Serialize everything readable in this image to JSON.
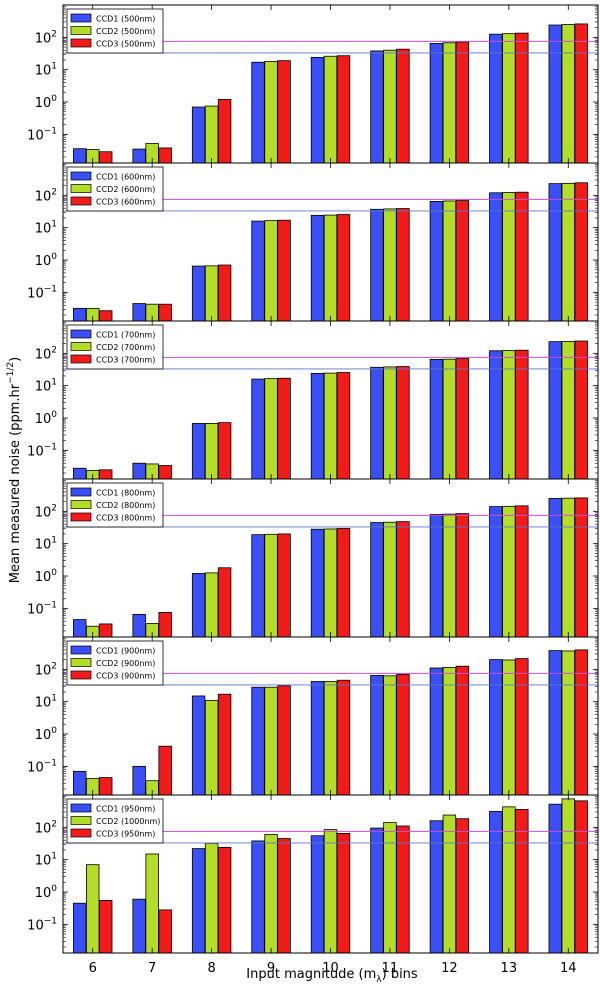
{
  "chart_data": {
    "type": "bar",
    "ylabel_main": "Mean measured noise (ppm.hr",
    "ylabel_sup": "−1/2",
    "ylabel_close": ")",
    "xlabel_main": "Input magnitude (m",
    "xlabel_sub": "λ",
    "xlabel_close": ") bins",
    "categories": [
      "6",
      "7",
      "8",
      "9",
      "10",
      "11",
      "12",
      "13",
      "14"
    ],
    "y_scale": "log",
    "y_ticks": [
      {
        "base": "10",
        "exp": "2",
        "value": 100
      },
      {
        "base": "10",
        "exp": "1",
        "value": 10
      },
      {
        "base": "10",
        "exp": "0",
        "value": 1
      },
      {
        "base": "10",
        "exp": "−1",
        "value": 0.1
      }
    ],
    "colors": {
      "ccd1": "#3a4ff5",
      "ccd2": "#b3de27",
      "ccd3": "#f21b1b",
      "line_magenta": "#c44fd6",
      "line_blue": "#5a76c9"
    },
    "panels": [
      {
        "legend": [
          "CCD1 (500nm)",
          "CCD2 (500nm)",
          "CCD3 (500nm)"
        ],
        "ylim": [
          0.013,
          1000
        ],
        "hlines": [
          75,
          33
        ],
        "series": [
          {
            "name": "CCD1 (500nm)",
            "values": [
              0.036,
              0.035,
              0.7,
              17,
              24,
              38,
              65,
              125,
              240
            ]
          },
          {
            "name": "CCD2 (500nm)",
            "values": [
              0.034,
              0.052,
              0.75,
              18,
              26,
              40,
              68,
              130,
              250
            ]
          },
          {
            "name": "CCD3 (500nm)",
            "values": [
              0.029,
              0.038,
              1.2,
              19,
              27,
              43,
              72,
              135,
              260
            ]
          }
        ]
      },
      {
        "legend": [
          "CCD1 (600nm)",
          "CCD2 (600nm)",
          "CCD3 (600nm)"
        ],
        "ylim": [
          0.013,
          1000
        ],
        "hlines": [
          75,
          33
        ],
        "series": [
          {
            "name": "CCD1 (600nm)",
            "values": [
              0.032,
              0.045,
              0.65,
              16,
              24,
              37,
              65,
              120,
              230
            ]
          },
          {
            "name": "CCD2 (600nm)",
            "values": [
              0.032,
              0.043,
              0.66,
              16.5,
              24.5,
              38,
              67,
              122,
              235
            ]
          },
          {
            "name": "CCD3 (600nm)",
            "values": [
              0.027,
              0.043,
              0.7,
              17,
              25.5,
              39,
              69,
              125,
              245
            ]
          }
        ]
      },
      {
        "legend": [
          "CCD1 (700nm)",
          "CCD2 (700nm)",
          "CCD3 (700nm)"
        ],
        "ylim": [
          0.013,
          1000
        ],
        "hlines": [
          75,
          33
        ],
        "series": [
          {
            "name": "CCD1 (700nm)",
            "values": [
              0.028,
              0.04,
              0.68,
              16,
              24,
              37,
              65,
              120,
              230
            ]
          },
          {
            "name": "CCD2 (700nm)",
            "values": [
              0.024,
              0.038,
              0.68,
              16.5,
              24.5,
              38,
              66,
              122,
              232
            ]
          },
          {
            "name": "CCD3 (700nm)",
            "values": [
              0.025,
              0.034,
              0.72,
              17,
              25.5,
              39,
              69,
              125,
              240
            ]
          }
        ]
      },
      {
        "legend": [
          "CCD1 (800nm)",
          "CCD2 (800nm)",
          "CCD3 (800nm)"
        ],
        "ylim": [
          0.013,
          1000
        ],
        "hlines": [
          75,
          33
        ],
        "series": [
          {
            "name": "CCD1 (800nm)",
            "values": [
              0.045,
              0.065,
              1.2,
              19,
              28,
              45,
              80,
              140,
              250
            ]
          },
          {
            "name": "CCD2 (800nm)",
            "values": [
              0.028,
              0.034,
              1.25,
              19.5,
              28.5,
              46,
              82,
              143,
              255
            ]
          },
          {
            "name": "CCD3 (800nm)",
            "values": [
              0.033,
              0.075,
              1.8,
              20,
              29.5,
              48,
              85,
              148,
              260
            ]
          }
        ]
      },
      {
        "legend": [
          "CCD1 (900nm)",
          "CCD2 (900nm)",
          "CCD3 (900nm)"
        ],
        "ylim": [
          0.013,
          1000
        ],
        "hlines": [
          75,
          33
        ],
        "series": [
          {
            "name": "CCD1 (900nm)",
            "values": [
              0.07,
              0.1,
              15,
              28,
              42,
              65,
              110,
              200,
              380
            ]
          },
          {
            "name": "CCD2 (900nm)",
            "values": [
              0.042,
              0.036,
              11,
              28,
              42,
              63,
              115,
              195,
              370
            ]
          },
          {
            "name": "CCD3 (900nm)",
            "values": [
              0.045,
              0.42,
              17,
              31,
              46,
              70,
              125,
              215,
              400
            ]
          }
        ]
      },
      {
        "legend": [
          "CCD1 (950nm)",
          "CCD2 (1000nm)",
          "CCD3 (950nm)"
        ],
        "ylim": [
          0.013,
          1000
        ],
        "hlines": [
          75,
          33
        ],
        "series": [
          {
            "name": "CCD1 (950nm)",
            "values": [
              0.45,
              0.6,
              22,
              38,
              55,
              95,
              160,
              310,
              520
            ]
          },
          {
            "name": "CCD2 (1000nm)",
            "values": [
              7,
              15,
              32,
              60,
              85,
              140,
              240,
              430,
              760
            ]
          },
          {
            "name": "CCD3 (950nm)",
            "values": [
              0.55,
              0.28,
              24,
              45,
              65,
              110,
              185,
              360,
              660
            ]
          }
        ]
      }
    ]
  }
}
